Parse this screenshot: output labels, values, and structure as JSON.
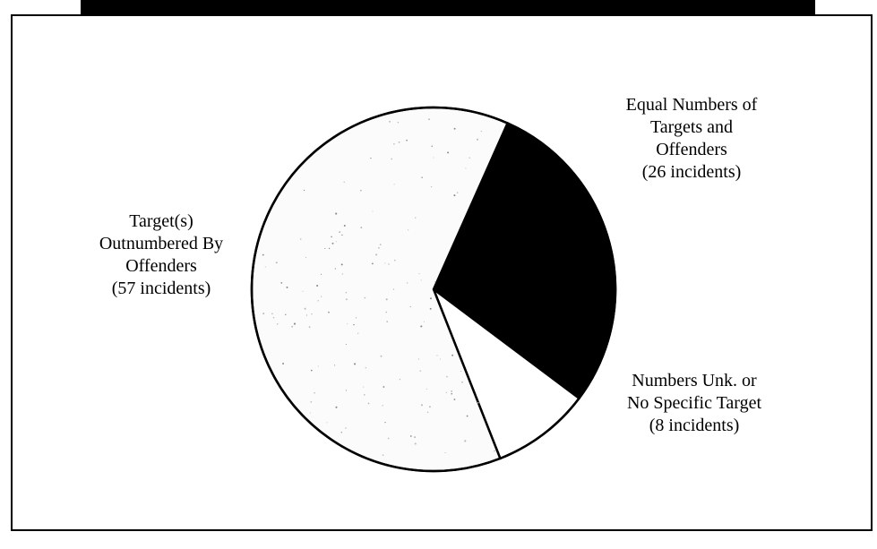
{
  "chart_data": {
    "type": "pie",
    "title": "",
    "slices": [
      {
        "name": "Equal Numbers of Targets and Offenders",
        "value": 26,
        "color": "#000000",
        "label_lines": [
          "Equal Numbers of",
          "Targets and",
          "Offenders",
          "(26 incidents)"
        ]
      },
      {
        "name": "Numbers Unk. or No Specific Target",
        "value": 8,
        "color": "#ffffff",
        "label_lines": [
          "Numbers Unk. or",
          "No Specific Target",
          "(8 incidents)"
        ]
      },
      {
        "name": "Target(s) Outnumbered By Offenders",
        "value": 57,
        "color": "#fbfbfb",
        "label_lines": [
          "Target(s)",
          "Outnumbered By",
          "Offenders",
          "(57 incidents)"
        ]
      }
    ],
    "legend": "none",
    "start_angle_deg": 24,
    "direction": "clockwise"
  }
}
